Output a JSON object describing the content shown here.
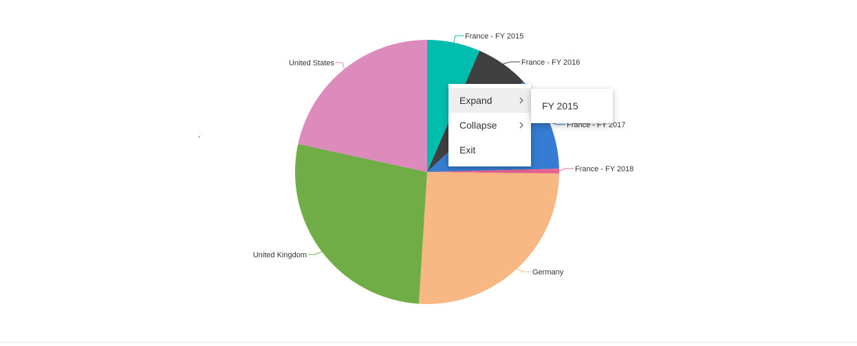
{
  "chart_data": {
    "type": "pie",
    "title": "",
    "slices": [
      {
        "label": "France - FY 2015",
        "value": 6.5,
        "color": "#00BDAE"
      },
      {
        "label": "France - FY 2016",
        "value": 6.5,
        "color": "#404041"
      },
      {
        "label": "France - FY 2017",
        "value": 11.6,
        "color": "#357CD2"
      },
      {
        "label": "France - FY 2018",
        "value": 0.6,
        "color": "#E56590"
      },
      {
        "label": "Germany",
        "value": 25.8,
        "color": "#F8B883"
      },
      {
        "label": "United Kingdom",
        "value": 27.4,
        "color": "#70AD47"
      },
      {
        "label": "United States",
        "value": 21.6,
        "color": "#DD8ABD"
      }
    ]
  },
  "context_menu": {
    "items": [
      {
        "label": "Expand",
        "has_submenu": true,
        "active": true
      },
      {
        "label": "Collapse",
        "has_submenu": true,
        "active": false
      },
      {
        "label": "Exit",
        "has_submenu": false,
        "active": false
      }
    ],
    "submenu": {
      "items": [
        {
          "label": "FY 2015"
        }
      ]
    }
  }
}
